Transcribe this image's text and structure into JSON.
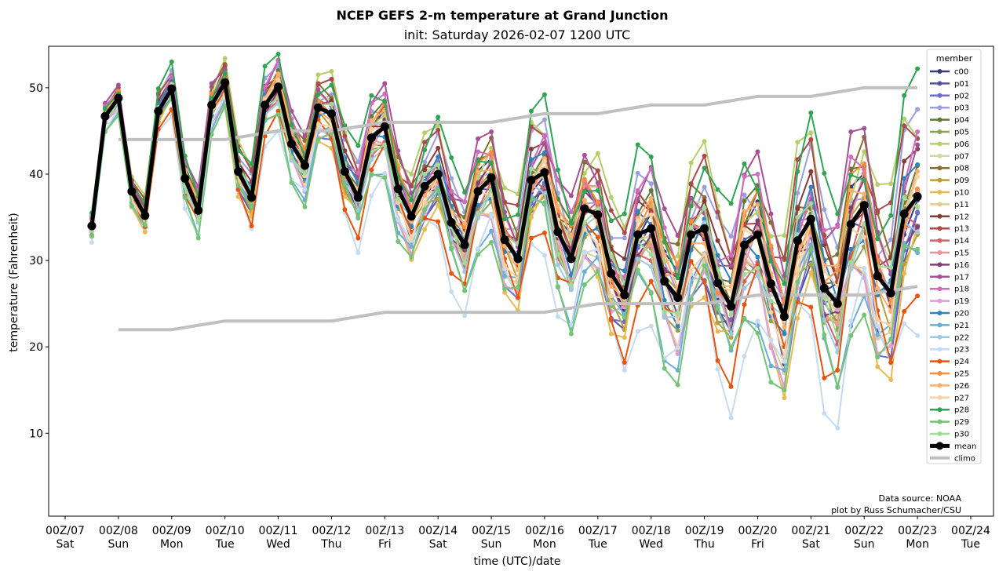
{
  "chart_data": {
    "type": "line",
    "title": "NCEP GEFS 2-m temperature at Grand Junction",
    "subtitle": "init: Saturday 2026-02-07 1200 UTC",
    "xlabel": "time (UTC)/date",
    "ylabel": "temperature (Fahrenheit)",
    "ylim": [
      0.4,
      54.8
    ],
    "xlim_days_from_00Z07": [
      -0.31,
      17.43
    ],
    "grid": false,
    "y_ticks": [
      10,
      20,
      30,
      40,
      50
    ],
    "x_ticks": [
      {
        "day": 0,
        "label": "00Z/07",
        "weekday": "Sat"
      },
      {
        "day": 1,
        "label": "00Z/08",
        "weekday": "Sun"
      },
      {
        "day": 2,
        "label": "00Z/09",
        "weekday": "Mon"
      },
      {
        "day": 3,
        "label": "00Z/10",
        "weekday": "Tue"
      },
      {
        "day": 4,
        "label": "00Z/11",
        "weekday": "Wed"
      },
      {
        "day": 5,
        "label": "00Z/12",
        "weekday": "Thu"
      },
      {
        "day": 6,
        "label": "00Z/13",
        "weekday": "Fri"
      },
      {
        "day": 7,
        "label": "00Z/14",
        "weekday": "Sat"
      },
      {
        "day": 8,
        "label": "00Z/15",
        "weekday": "Sun"
      },
      {
        "day": 9,
        "label": "00Z/16",
        "weekday": "Mon"
      },
      {
        "day": 10,
        "label": "00Z/17",
        "weekday": "Tue"
      },
      {
        "day": 11,
        "label": "00Z/18",
        "weekday": "Wed"
      },
      {
        "day": 12,
        "label": "00Z/19",
        "weekday": "Thu"
      },
      {
        "day": 13,
        "label": "00Z/20",
        "weekday": "Fri"
      },
      {
        "day": 14,
        "label": "00Z/21",
        "weekday": "Sat"
      },
      {
        "day": 15,
        "label": "00Z/22",
        "weekday": "Sun"
      },
      {
        "day": 16,
        "label": "00Z/23",
        "weekday": "Mon"
      },
      {
        "day": 17,
        "label": "00Z/24",
        "weekday": "Tue"
      }
    ],
    "time_step_hours": 6,
    "first_time_day": 0.5,
    "legend": {
      "title": "member",
      "placement": "top-right"
    },
    "mean": {
      "name": "mean",
      "color": "#000000",
      "values": [
        34,
        46.7,
        48.8,
        38,
        35.2,
        47.3,
        49.9,
        39.5,
        35.8,
        48,
        50.6,
        40.3,
        37.3,
        48,
        50.1,
        43.5,
        41,
        47.7,
        47,
        40.3,
        37.3,
        44.2,
        45.5,
        38.3,
        35.1,
        38.6,
        40,
        34.4,
        31.8,
        38,
        39.6,
        32.4,
        30.2,
        39.3,
        40.2,
        33.3,
        30.2,
        36,
        35.3,
        28.5,
        26,
        33,
        33.7,
        27.6,
        25.7,
        33,
        33.7,
        27.4,
        24.7,
        31.8,
        33,
        27.3,
        23.5,
        32.3,
        34.8,
        26.8,
        25,
        34.2,
        36.4,
        28.2,
        26.2,
        35.4,
        37.4
      ]
    },
    "climo": {
      "name": "climo",
      "color": "#c0c0c0",
      "days": [
        1,
        2,
        3,
        4,
        5,
        6,
        7,
        8,
        9,
        10,
        11,
        12,
        13,
        14,
        15,
        16
      ],
      "max": [
        44,
        44,
        44,
        45,
        45,
        46,
        46,
        46,
        47,
        47,
        48,
        48,
        49,
        49,
        50,
        50
      ],
      "min": [
        22,
        22,
        23,
        23,
        23,
        24,
        24,
        24,
        24,
        25,
        25,
        25,
        26,
        26,
        26,
        27
      ]
    },
    "series": [
      {
        "name": "c00",
        "color": "#393b79",
        "offset": 0.5,
        "amp": 0.9,
        "phase": 0.3
      },
      {
        "name": "p01",
        "color": "#5254a3",
        "offset": -1.5,
        "amp": 1.1,
        "phase": 1.1
      },
      {
        "name": "p02",
        "color": "#6b6ecf",
        "offset": -2.5,
        "amp": 1.0,
        "phase": 2.0
      },
      {
        "name": "p03",
        "color": "#9c9ede",
        "offset": 2.5,
        "amp": 1.2,
        "phase": 2.7
      },
      {
        "name": "p04",
        "color": "#637939",
        "offset": 1.5,
        "amp": 0.9,
        "phase": 0.8
      },
      {
        "name": "p05",
        "color": "#8ca252",
        "offset": -0.8,
        "amp": 1.0,
        "phase": 3.4
      },
      {
        "name": "p06",
        "color": "#b5cf6b",
        "offset": 3.5,
        "amp": 1.3,
        "phase": 4.1
      },
      {
        "name": "p07",
        "color": "#cedb9c",
        "offset": 0.8,
        "amp": 0.8,
        "phase": 5.0
      },
      {
        "name": "p08",
        "color": "#8c6d31",
        "offset": 2.0,
        "amp": 1.0,
        "phase": 5.7
      },
      {
        "name": "p09",
        "color": "#bd9e39",
        "offset": -1.0,
        "amp": 0.9,
        "phase": 0.1
      },
      {
        "name": "p10",
        "color": "#e7ba52",
        "offset": -3.0,
        "amp": 1.1,
        "phase": 1.6
      },
      {
        "name": "p11",
        "color": "#e7cb94",
        "offset": -1.8,
        "amp": 1.0,
        "phase": 2.4
      },
      {
        "name": "p12",
        "color": "#843c39",
        "offset": 1.2,
        "amp": 0.9,
        "phase": 3.0
      },
      {
        "name": "p13",
        "color": "#ad494a",
        "offset": 2.8,
        "amp": 1.2,
        "phase": 3.8
      },
      {
        "name": "p14",
        "color": "#d6616b",
        "offset": -0.5,
        "amp": 1.0,
        "phase": 4.5
      },
      {
        "name": "p15",
        "color": "#e7969c",
        "offset": 0.3,
        "amp": 1.1,
        "phase": 5.3
      },
      {
        "name": "p16",
        "color": "#7b4173",
        "offset": -0.2,
        "amp": 0.9,
        "phase": 6.0
      },
      {
        "name": "p17",
        "color": "#a55194",
        "offset": 3.0,
        "amp": 1.2,
        "phase": 0.6
      },
      {
        "name": "p18",
        "color": "#ce6dbd",
        "offset": 2.2,
        "amp": 1.2,
        "phase": 1.3
      },
      {
        "name": "p19",
        "color": "#de9ed6",
        "offset": -2.0,
        "amp": 1.3,
        "phase": 2.2
      },
      {
        "name": "p20",
        "color": "#3182bd",
        "offset": 0.0,
        "amp": 1.1,
        "phase": 2.9
      },
      {
        "name": "p21",
        "color": "#6baed6",
        "offset": -3.5,
        "amp": 1.2,
        "phase": 3.6
      },
      {
        "name": "p22",
        "color": "#9ecae1",
        "offset": -1.2,
        "amp": 0.9,
        "phase": 4.3
      },
      {
        "name": "p23",
        "color": "#c6dbef",
        "offset": -5.0,
        "amp": 1.3,
        "phase": 5.1
      },
      {
        "name": "p24",
        "color": "#e6550d",
        "offset": -3.2,
        "amp": 1.2,
        "phase": 5.9
      },
      {
        "name": "p25",
        "color": "#fd8d3c",
        "offset": 1.0,
        "amp": 1.0,
        "phase": 0.4
      },
      {
        "name": "p26",
        "color": "#fdae6b",
        "offset": 0.6,
        "amp": 0.9,
        "phase": 1.2
      },
      {
        "name": "p27",
        "color": "#fdd0a2",
        "offset": -0.6,
        "amp": 1.0,
        "phase": 1.9
      },
      {
        "name": "p28",
        "color": "#31a354",
        "offset": 4.0,
        "amp": 1.5,
        "phase": 2.6
      },
      {
        "name": "p29",
        "color": "#74c476",
        "offset": -4.0,
        "amp": 1.3,
        "phase": 3.3
      },
      {
        "name": "p30",
        "color": "#a1d99b",
        "offset": -0.4,
        "amp": 1.0,
        "phase": 4.0
      }
    ],
    "annotations": [
      "Data source: NOAA",
      "plot by Russ Schumacher/CSU"
    ]
  }
}
